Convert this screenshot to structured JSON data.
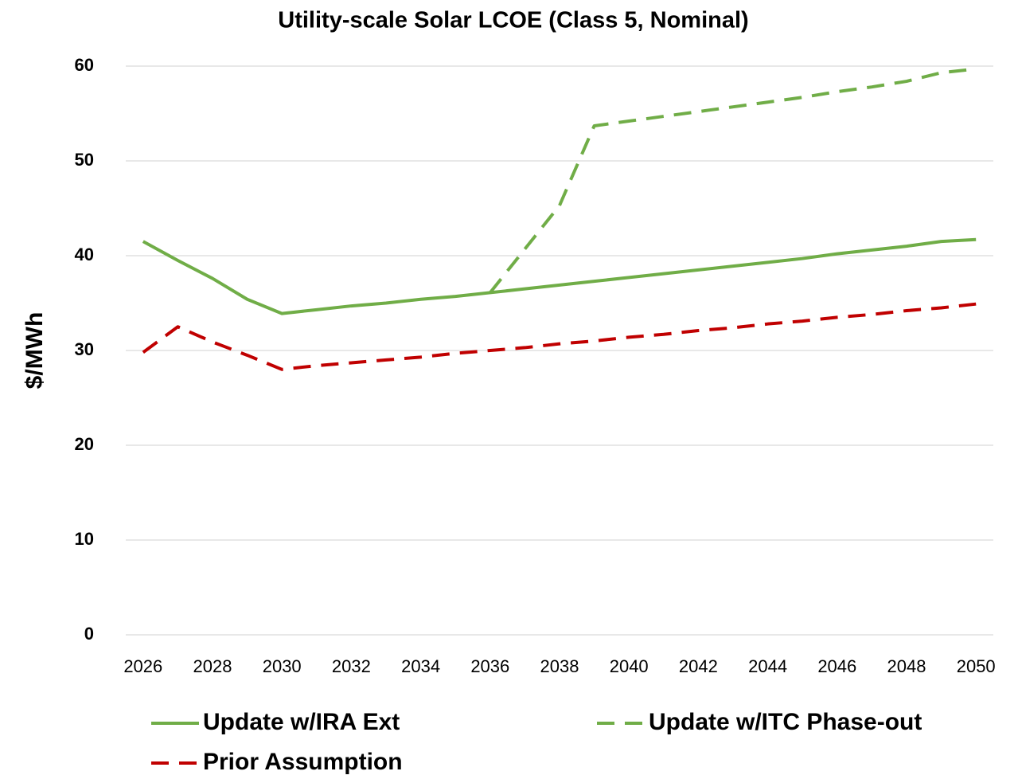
{
  "chart_data": {
    "type": "line",
    "title": "Utility-scale Solar LCOE (Class 5, Nominal)",
    "y_label": "$/MWh",
    "x": [
      2026,
      2027,
      2028,
      2029,
      2030,
      2031,
      2032,
      2033,
      2034,
      2035,
      2036,
      2037,
      2038,
      2039,
      2040,
      2041,
      2042,
      2043,
      2044,
      2045,
      2046,
      2047,
      2048,
      2049,
      2050
    ],
    "xlim": [
      2025.5,
      2050.5
    ],
    "xticks": [
      2026,
      2028,
      2030,
      2032,
      2034,
      2036,
      2038,
      2040,
      2042,
      2044,
      2046,
      2048,
      2050
    ],
    "ylim": [
      0,
      60
    ],
    "yticks": [
      0,
      10,
      20,
      30,
      40,
      50,
      60
    ],
    "grid": true,
    "series": [
      {
        "name": "Update w/IRA Ext",
        "color": "#70ad47",
        "line_style": "solid",
        "values": [
          41.5,
          39.5,
          37.6,
          35.4,
          33.9,
          34.3,
          34.7,
          35.0,
          35.4,
          35.7,
          36.1,
          36.5,
          36.9,
          37.3,
          37.7,
          38.1,
          38.5,
          38.9,
          39.3,
          39.7,
          40.2,
          40.6,
          41.0,
          41.5,
          41.7
        ]
      },
      {
        "name": "Update w/ITC Phase-out",
        "color": "#70ad47",
        "line_style": "dashed",
        "values": [
          null,
          null,
          null,
          null,
          null,
          null,
          null,
          null,
          null,
          null,
          36.1,
          40.7,
          45.3,
          53.7,
          54.2,
          54.7,
          55.2,
          55.7,
          56.2,
          56.7,
          57.3,
          57.8,
          58.4,
          59.3,
          59.7
        ]
      },
      {
        "name": "Prior Assumption",
        "color": "#c00000",
        "line_style": "dashed",
        "values": [
          29.8,
          32.5,
          30.9,
          29.5,
          28.0,
          28.4,
          28.7,
          29.0,
          29.3,
          29.7,
          30.0,
          30.3,
          30.7,
          31.0,
          31.4,
          31.7,
          32.1,
          32.4,
          32.8,
          33.1,
          33.5,
          33.8,
          34.2,
          34.5,
          34.9
        ]
      }
    ]
  }
}
